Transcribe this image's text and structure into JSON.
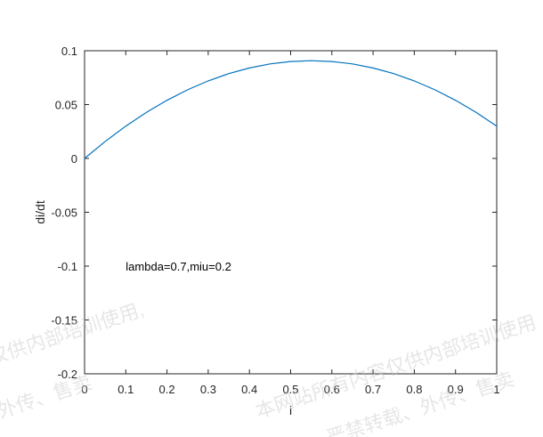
{
  "chart_data": {
    "type": "line",
    "title": "",
    "xlabel": "i",
    "ylabel": "di/dt",
    "xlim": [
      0,
      1
    ],
    "ylim": [
      -0.2,
      0.1
    ],
    "xticks": [
      0,
      0.1,
      0.2,
      0.3,
      0.4,
      0.5,
      0.6,
      0.7,
      0.8,
      0.9,
      1
    ],
    "xtick_labels": [
      "0",
      "0.1",
      "0.2",
      "0.3",
      "0.4",
      "0.5",
      "0.6",
      "0.7",
      "0.8",
      "0.9",
      "1"
    ],
    "yticks": [
      -0.2,
      -0.15,
      -0.1,
      -0.05,
      0,
      0.05,
      0.1
    ],
    "ytick_labels": [
      "-0.2",
      "-0.15",
      "-0.1",
      "-0.05",
      "0",
      "0.05",
      "0.1"
    ],
    "grid": false,
    "series": [
      {
        "color": "#0072BD",
        "x": [
          0,
          0.05,
          0.1,
          0.15,
          0.2,
          0.25,
          0.3,
          0.35,
          0.4,
          0.45,
          0.5,
          0.55,
          0.6,
          0.65,
          0.7,
          0.75,
          0.8,
          0.85,
          0.9,
          0.95,
          1
        ],
        "y": [
          0,
          0.01575,
          0.03,
          0.04275,
          0.054,
          0.06375,
          0.072,
          0.07875,
          0.084,
          0.08775,
          0.09,
          0.09075,
          0.09,
          0.08775,
          0.084,
          0.07875,
          0.072,
          0.06375,
          0.054,
          0.04275,
          0.03
        ]
      }
    ],
    "annotations": [
      {
        "text": "lambda=0.7,miu=0.2",
        "x": 0.1,
        "y": -0.1
      }
    ]
  },
  "watermark": {
    "lines": [
      "仅供内部培训使用,",
      "外传、售卖",
      "本网站所有内容仅供内部培训使用",
      "严禁转载、外传、售卖"
    ]
  }
}
